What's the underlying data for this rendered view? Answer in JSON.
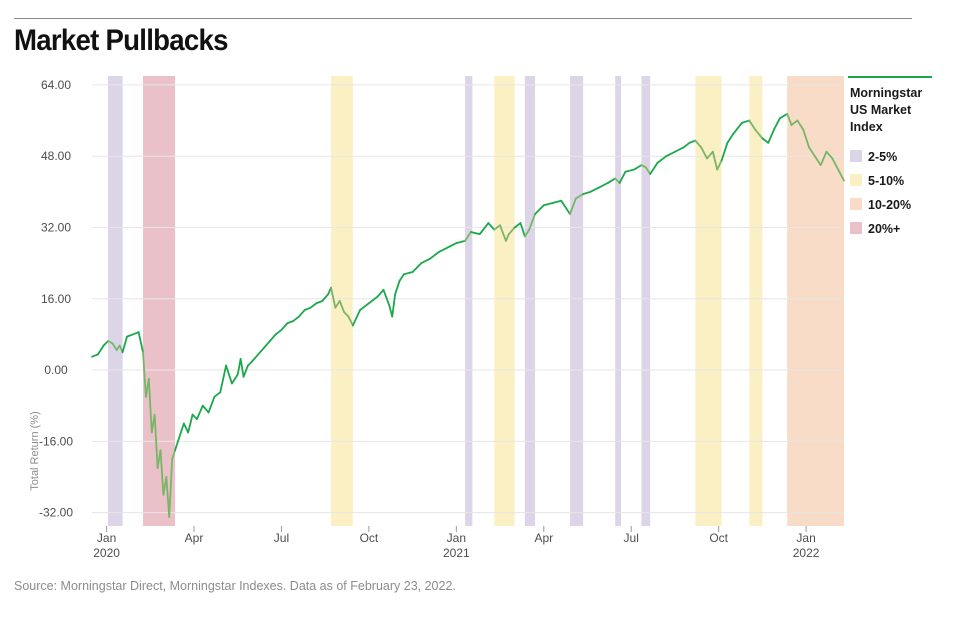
{
  "title": "Market Pullbacks",
  "source": "Source: Morningstar Direct, Morningstar Indexes. Data as of February 23, 2022.",
  "colors": {
    "line": "#1aa84a",
    "line_pullback": "#7ab567",
    "grid": "#e6e6e6",
    "band_2_5": "#dcd5e8",
    "band_5_10": "#fbf0c4",
    "band_10_20": "#f9dcc7",
    "band_20_plus": "#ebc1c9",
    "legend_rule": "#1aa84a"
  },
  "chart_data": {
    "type": "line",
    "title": "Market Pullbacks",
    "ylabel": "Total Return (%)",
    "ylim": [
      -35,
      66
    ],
    "yticks": [
      64,
      48,
      32,
      16,
      0,
      -16,
      -32
    ],
    "ytick_labels": [
      "64.00",
      "48.00",
      "32.00",
      "16.00",
      "0.00",
      "-16.00",
      "-32.00"
    ],
    "xlim": [
      0,
      25.8
    ],
    "xticks": [
      {
        "pos": 0.5,
        "label": "Jan",
        "year": "2020"
      },
      {
        "pos": 3.5,
        "label": "Apr",
        "year": ""
      },
      {
        "pos": 6.5,
        "label": "Jul",
        "year": ""
      },
      {
        "pos": 9.5,
        "label": "Oct",
        "year": ""
      },
      {
        "pos": 12.5,
        "label": "Jan",
        "year": "2021"
      },
      {
        "pos": 15.5,
        "label": "Apr",
        "year": ""
      },
      {
        "pos": 18.5,
        "label": "Jul",
        "year": ""
      },
      {
        "pos": 21.5,
        "label": "Oct",
        "year": ""
      },
      {
        "pos": 24.5,
        "label": "Jan",
        "year": "2022"
      }
    ],
    "legend": {
      "title": [
        "Morningstar",
        "US Market",
        "Index"
      ],
      "items": [
        {
          "label": "2-5%",
          "category": "2-5"
        },
        {
          "label": "5-10%",
          "category": "5-10"
        },
        {
          "label": "10-20%",
          "category": "10-20"
        },
        {
          "label": "20%+",
          "category": "20+"
        }
      ]
    },
    "pullbacks": [
      {
        "start": 0.55,
        "end": 1.05,
        "category": "2-5"
      },
      {
        "start": 1.75,
        "end": 2.85,
        "category": "20+"
      },
      {
        "start": 8.2,
        "end": 8.95,
        "category": "5-10"
      },
      {
        "start": 12.8,
        "end": 13.05,
        "category": "2-5"
      },
      {
        "start": 13.8,
        "end": 14.5,
        "category": "5-10"
      },
      {
        "start": 14.85,
        "end": 15.2,
        "category": "2-5"
      },
      {
        "start": 16.4,
        "end": 16.85,
        "category": "2-5"
      },
      {
        "start": 17.95,
        "end": 18.15,
        "category": "2-5"
      },
      {
        "start": 18.85,
        "end": 19.15,
        "category": "2-5"
      },
      {
        "start": 20.7,
        "end": 21.6,
        "category": "5-10"
      },
      {
        "start": 22.55,
        "end": 23.0,
        "category": "5-10"
      },
      {
        "start": 23.85,
        "end": 25.8,
        "category": "10-20"
      }
    ],
    "series": [
      {
        "name": "Morningstar US Market Index",
        "x": [
          0.0,
          0.2,
          0.4,
          0.55,
          0.7,
          0.85,
          0.95,
          1.05,
          1.2,
          1.4,
          1.6,
          1.75,
          1.85,
          1.95,
          2.05,
          2.15,
          2.25,
          2.35,
          2.45,
          2.55,
          2.65,
          2.75,
          2.85,
          3.0,
          3.15,
          3.3,
          3.45,
          3.6,
          3.8,
          4.0,
          4.2,
          4.4,
          4.6,
          4.8,
          5.0,
          5.1,
          5.2,
          5.35,
          5.5,
          5.7,
          5.9,
          6.1,
          6.3,
          6.5,
          6.7,
          6.9,
          7.1,
          7.3,
          7.5,
          7.7,
          7.9,
          8.1,
          8.2,
          8.35,
          8.5,
          8.65,
          8.8,
          8.95,
          9.2,
          9.5,
          9.8,
          10.0,
          10.2,
          10.3,
          10.4,
          10.55,
          10.7,
          11.0,
          11.3,
          11.6,
          11.9,
          12.2,
          12.5,
          12.8,
          13.0,
          13.3,
          13.6,
          13.8,
          14.0,
          14.2,
          14.3,
          14.5,
          14.7,
          14.85,
          15.0,
          15.2,
          15.5,
          15.8,
          16.1,
          16.4,
          16.6,
          16.85,
          17.1,
          17.4,
          17.7,
          17.95,
          18.1,
          18.3,
          18.6,
          18.85,
          19.0,
          19.15,
          19.4,
          19.7,
          20.0,
          20.3,
          20.5,
          20.7,
          20.9,
          21.1,
          21.3,
          21.45,
          21.6,
          21.8,
          22.0,
          22.3,
          22.55,
          22.75,
          23.0,
          23.2,
          23.4,
          23.6,
          23.85,
          24.0,
          24.2,
          24.4,
          24.6,
          24.8,
          25.0,
          25.2,
          25.4,
          25.6,
          25.8
        ],
        "y": [
          3.0,
          3.5,
          5.5,
          6.5,
          6.0,
          4.5,
          5.5,
          4.0,
          7.5,
          8.0,
          8.5,
          4.0,
          -6.0,
          -2.0,
          -14.0,
          -10.0,
          -22.0,
          -18.0,
          -28.0,
          -24.0,
          -33.0,
          -20.0,
          -18.0,
          -15.0,
          -12.0,
          -14.0,
          -10.0,
          -11.0,
          -8.0,
          -9.5,
          -6.0,
          -5.0,
          1.0,
          -3.0,
          -1.0,
          2.5,
          -1.5,
          1.0,
          2.0,
          3.5,
          5.0,
          6.5,
          8.0,
          9.0,
          10.5,
          11.0,
          12.0,
          13.5,
          14.0,
          15.0,
          15.5,
          17.0,
          18.5,
          14.0,
          15.5,
          13.0,
          12.0,
          10.0,
          13.5,
          15.0,
          16.5,
          18.0,
          14.5,
          12.0,
          17.0,
          20.0,
          21.5,
          22.0,
          24.0,
          25.0,
          26.5,
          27.5,
          28.5,
          29.0,
          31.0,
          30.5,
          33.0,
          31.5,
          32.5,
          29.0,
          30.5,
          32.0,
          33.0,
          30.0,
          31.5,
          35.0,
          37.0,
          37.5,
          38.0,
          35.0,
          38.5,
          39.5,
          40.0,
          41.0,
          42.0,
          43.0,
          42.0,
          44.5,
          45.0,
          46.0,
          45.5,
          44.0,
          46.5,
          48.0,
          49.0,
          50.0,
          51.0,
          51.5,
          50.0,
          47.5,
          49.0,
          45.0,
          47.0,
          51.0,
          53.0,
          55.5,
          56.0,
          54.0,
          52.0,
          51.0,
          54.0,
          56.5,
          57.5,
          55.0,
          56.0,
          54.0,
          50.0,
          48.0,
          46.0,
          49.0,
          47.5,
          45.0,
          42.5
        ]
      }
    ]
  }
}
